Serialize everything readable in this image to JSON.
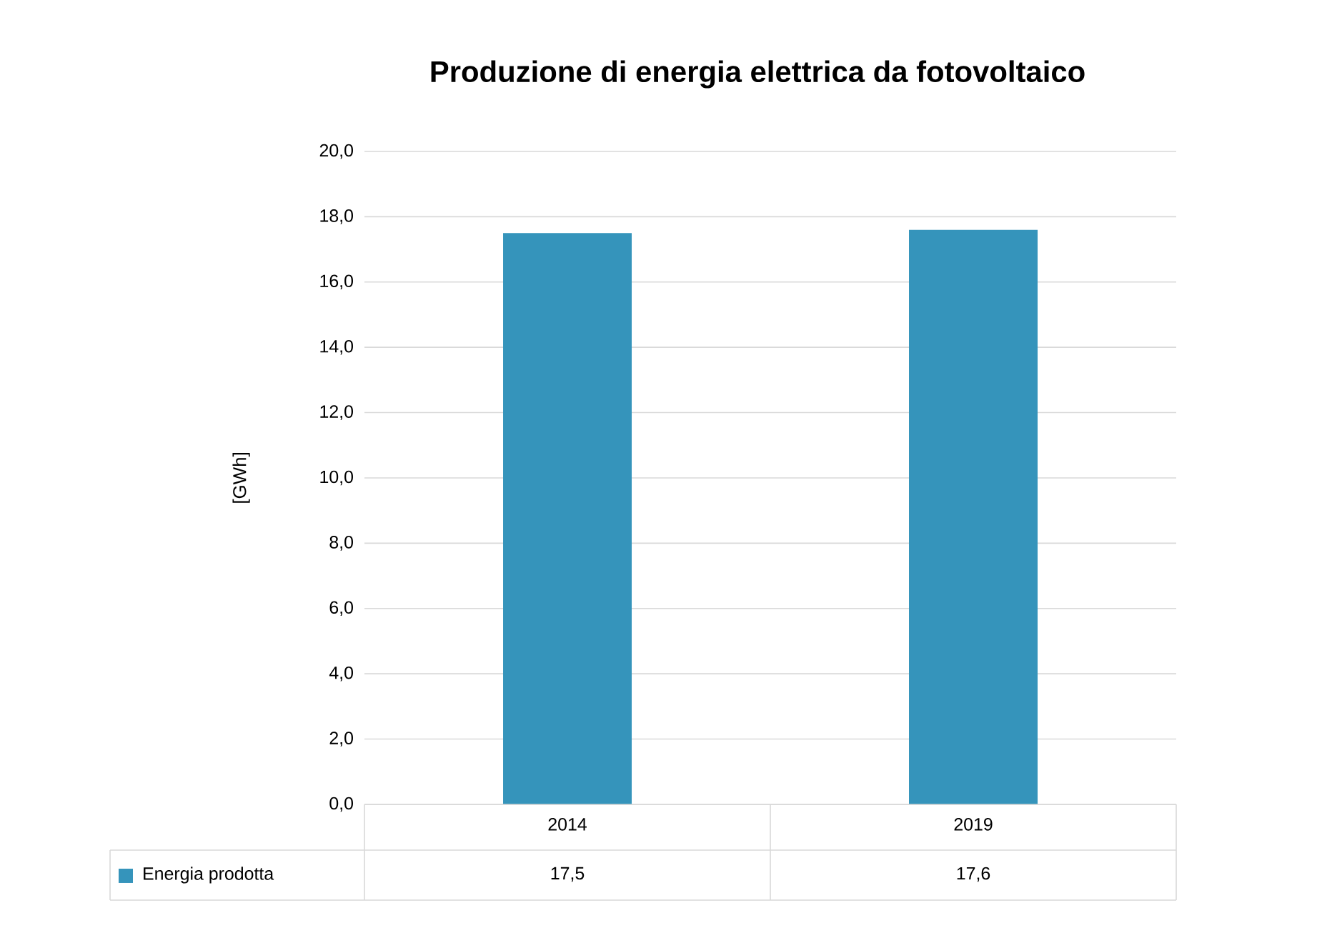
{
  "chart_data": {
    "type": "bar",
    "title": "Produzione di energia elettrica da fotovoltaico",
    "ylabel": "[GWh]",
    "categories": [
      "2014",
      "2019"
    ],
    "series": [
      {
        "name": "Energia prodotta",
        "color": "#3594bb",
        "values": [
          17.5,
          17.6
        ],
        "value_labels": [
          "17,5",
          "17,6"
        ]
      }
    ],
    "ylim": [
      0,
      20
    ],
    "yticks": [
      {
        "value": 0,
        "label": "0,0"
      },
      {
        "value": 2,
        "label": "2,0"
      },
      {
        "value": 4,
        "label": "4,0"
      },
      {
        "value": 6,
        "label": "6,0"
      },
      {
        "value": 8,
        "label": "8,0"
      },
      {
        "value": 10,
        "label": "10,0"
      },
      {
        "value": 12,
        "label": "12,0"
      },
      {
        "value": 14,
        "label": "14,0"
      },
      {
        "value": 16,
        "label": "16,0"
      },
      {
        "value": 18,
        "label": "18,0"
      },
      {
        "value": 20,
        "label": "20,0"
      }
    ],
    "grid": "y",
    "legend": "bottom"
  }
}
